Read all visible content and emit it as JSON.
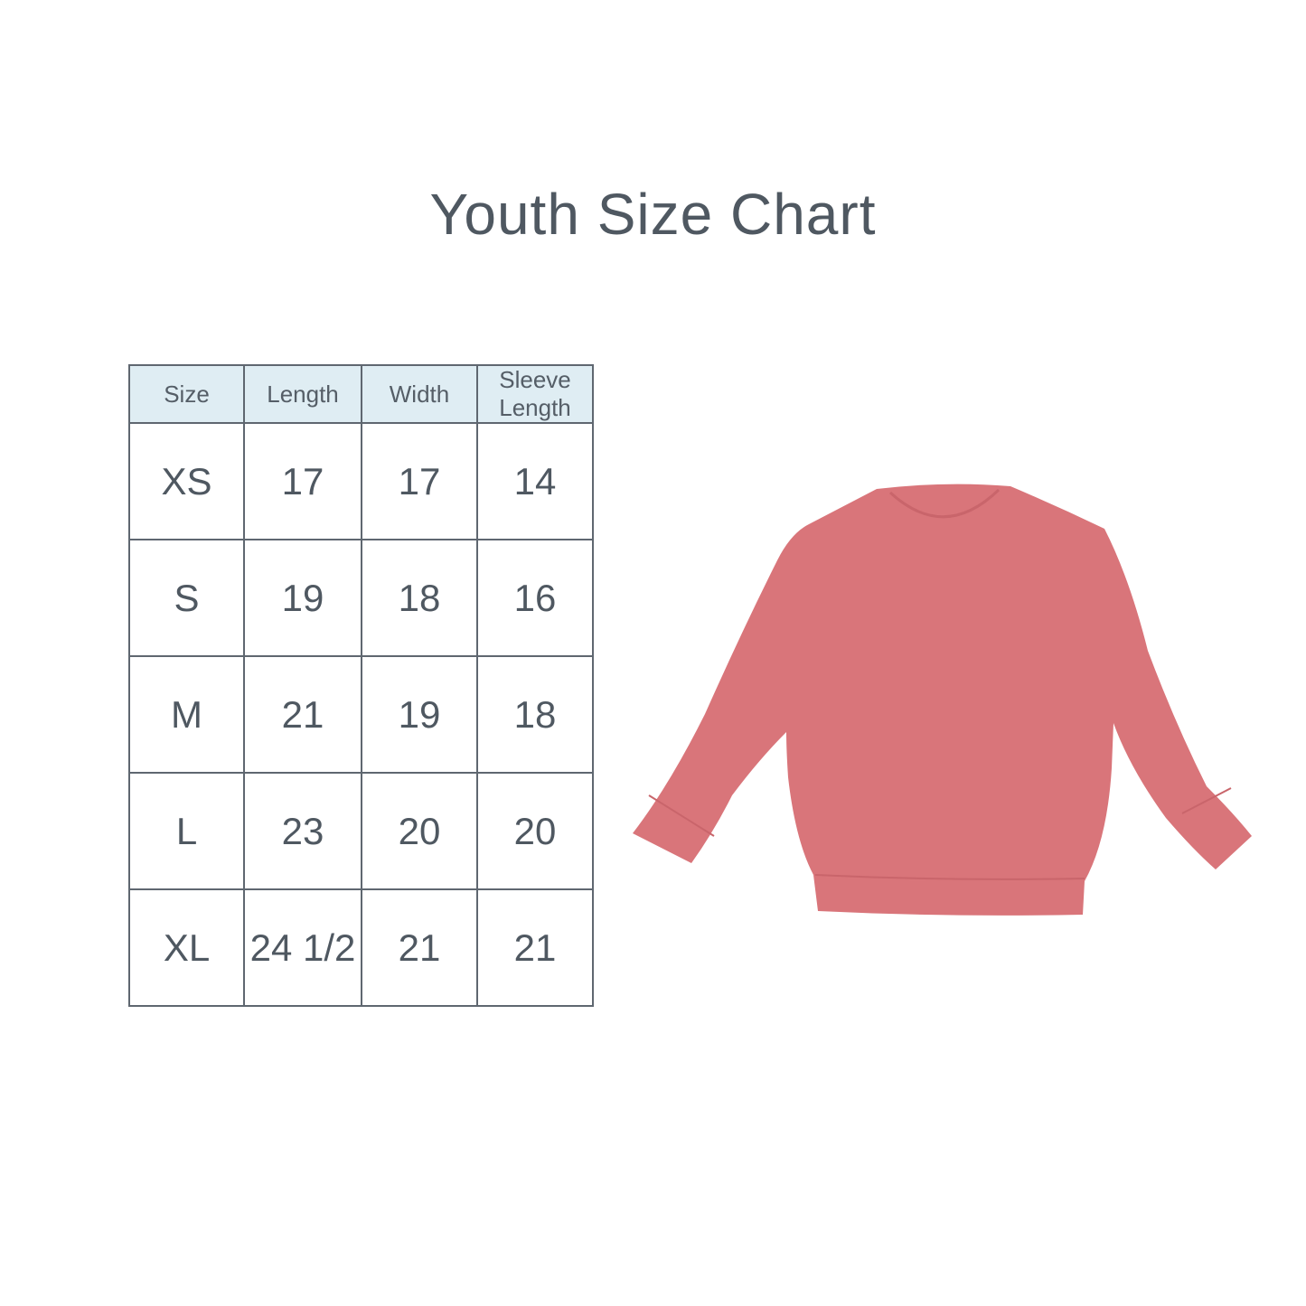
{
  "title": "Youth Size Chart",
  "table": {
    "headers": [
      "Size",
      "Length",
      "Width",
      "Sleeve Length"
    ],
    "rows": [
      [
        "XS",
        "17",
        "17",
        "14"
      ],
      [
        "S",
        "19",
        "18",
        "16"
      ],
      [
        "M",
        "21",
        "19",
        "18"
      ],
      [
        "L",
        "23",
        "20",
        "20"
      ],
      [
        "XL",
        "24 1/2",
        "21",
        "21"
      ]
    ]
  },
  "colors": {
    "header_bg": "#dfedf3",
    "border": "#5f6770",
    "text": "#4f5861",
    "garment": "#d9757a"
  },
  "image": {
    "subject": "pink crewneck sweatshirt"
  }
}
